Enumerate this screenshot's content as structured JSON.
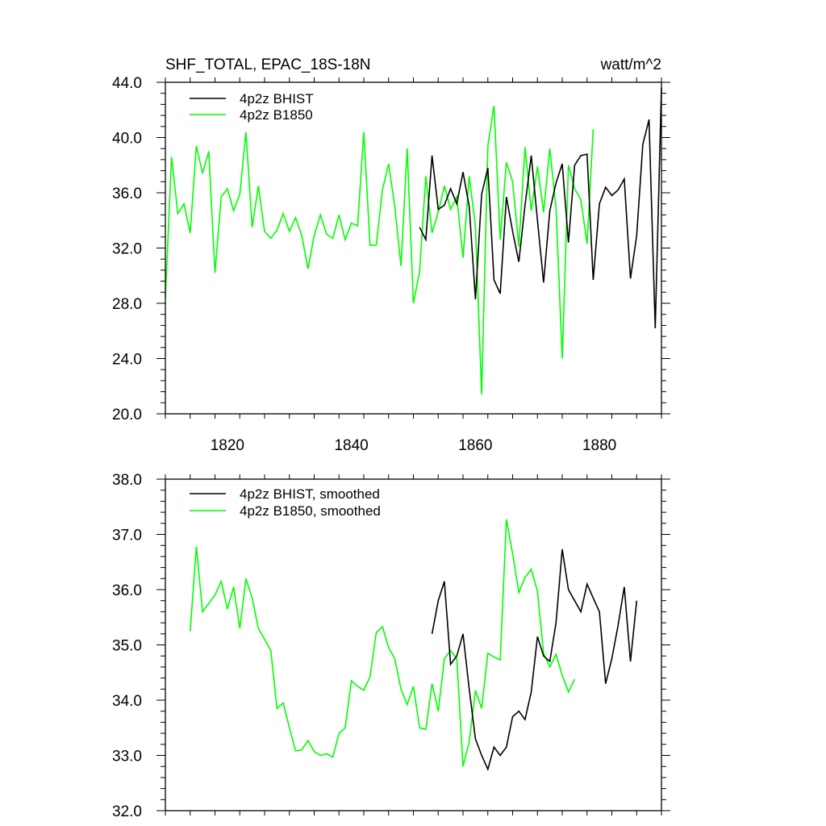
{
  "chart_data": [
    {
      "type": "line",
      "title": "SHF_TOTAL, EPAC_18S-18N",
      "units": "watt/m^2",
      "xlim": [
        1810,
        1890
      ],
      "ylim": [
        20,
        44
      ],
      "yticks": [
        20,
        24,
        28,
        32,
        36,
        40,
        44
      ],
      "ytick_labels": [
        "20.0",
        "24.0",
        "28.0",
        "32.0",
        "36.0",
        "40.0",
        "44.0"
      ],
      "xticks": [
        1820,
        1840,
        1860,
        1880
      ],
      "xtick_labels": [
        "1820",
        "1840",
        "1860",
        "1880"
      ],
      "legend_position": "top-left",
      "series": [
        {
          "name": "4p2z BHIST",
          "color": "#000000",
          "x_start": 1851,
          "values": [
            33.5,
            32.6,
            38.7,
            34.8,
            35.1,
            36.3,
            35.2,
            37.5,
            35.0,
            28.3,
            35.9,
            37.8,
            29.7,
            28.7,
            35.7,
            33.2,
            31.0,
            35.1,
            38.7,
            34.0,
            29.5,
            34.7,
            36.7,
            38.1,
            32.4,
            38.0,
            38.7,
            38.8,
            29.7,
            35.2,
            36.4,
            35.8,
            36.2,
            37.0,
            29.8,
            32.9,
            39.5,
            41.3,
            26.2,
            43.6
          ]
        },
        {
          "name": "4p2z B1850",
          "color": "#00ff00",
          "x_start": 1810,
          "values": [
            28.4,
            38.6,
            34.5,
            35.2,
            33.1,
            39.4,
            37.4,
            39.0,
            30.2,
            35.7,
            36.3,
            34.7,
            35.9,
            40.4,
            33.5,
            36.5,
            33.2,
            32.7,
            33.3,
            34.5,
            33.2,
            34.2,
            32.9,
            30.5,
            32.9,
            34.4,
            33.0,
            32.7,
            34.4,
            32.6,
            33.8,
            33.6,
            40.4,
            32.2,
            32.2,
            36.2,
            38.1,
            35.0,
            30.7,
            39.2,
            28.0,
            30.3,
            37.2,
            33.1,
            34.6,
            36.5,
            34.8,
            35.7,
            31.3,
            37.2,
            33.6,
            21.4,
            39.4,
            42.3,
            32.6,
            38.2,
            36.8,
            32.1,
            39.3,
            34.7,
            37.9,
            34.6,
            39.2,
            34.9,
            24.0,
            38.0,
            36.3,
            35.5,
            32.3,
            40.6
          ]
        }
      ]
    },
    {
      "type": "line",
      "title": "",
      "xlim": [
        1810,
        1890
      ],
      "ylim": [
        32,
        38
      ],
      "yticks": [
        32,
        33,
        34,
        35,
        36,
        37,
        38
      ],
      "ytick_labels": [
        "32.0",
        "33.0",
        "34.0",
        "35.0",
        "36.0",
        "37.0",
        "38.0"
      ],
      "xticks": [
        1820,
        1840,
        1860,
        1880
      ],
      "legend_position": "top-left",
      "series": [
        {
          "name": "4p2z BHIST, smoothed",
          "color": "#000000",
          "x_start": 1853,
          "values": [
            35.2,
            35.8,
            36.15,
            34.65,
            34.8,
            35.2,
            34.2,
            33.3,
            33.0,
            32.75,
            33.15,
            33.0,
            33.15,
            33.7,
            33.8,
            33.65,
            34.15,
            35.15,
            34.8,
            34.7,
            35.4,
            36.73,
            36.0,
            35.8,
            35.6,
            36.1,
            35.85,
            35.6,
            34.3,
            34.75,
            35.35,
            36.05,
            34.7,
            35.8
          ]
        },
        {
          "name": "4p2z B1850, smoothed",
          "color": "#00ff00",
          "x_start": 1814,
          "values": [
            35.25,
            36.78,
            35.6,
            35.75,
            35.9,
            36.15,
            35.65,
            36.05,
            35.3,
            36.2,
            35.85,
            35.3,
            35.1,
            34.9,
            33.85,
            33.95,
            33.5,
            33.08,
            33.1,
            33.27,
            33.07,
            33.0,
            33.03,
            32.97,
            33.4,
            33.5,
            34.35,
            34.25,
            34.18,
            34.42,
            35.22,
            35.33,
            34.95,
            34.75,
            34.2,
            33.92,
            34.25,
            33.5,
            33.47,
            34.3,
            33.8,
            34.75,
            34.9,
            34.75,
            32.8,
            33.25,
            34.18,
            33.85,
            34.85,
            34.78,
            34.73,
            37.27,
            36.65,
            35.95,
            36.22,
            36.37,
            35.97,
            34.85,
            34.6,
            34.83,
            34.45,
            34.15,
            34.38
          ]
        }
      ]
    }
  ]
}
